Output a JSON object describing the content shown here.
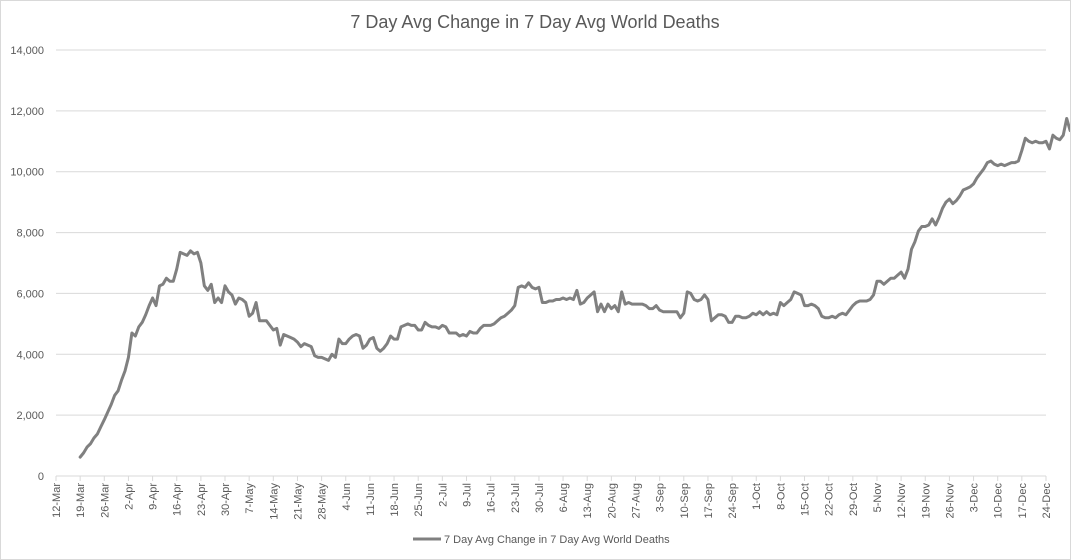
{
  "chart_data": {
    "type": "line",
    "title": "7 Day Avg Change in 7 Day Avg World Deaths",
    "xlabel": "",
    "ylabel": "",
    "ylim": [
      0,
      14000
    ],
    "yticks": [
      0,
      2000,
      4000,
      6000,
      8000,
      10000,
      12000,
      14000
    ],
    "ytick_labels": [
      "0",
      "2,000",
      "4,000",
      "6,000",
      "8,000",
      "10,000",
      "12,000",
      "14,000"
    ],
    "x_start": "2020-03-12",
    "x_end": "2020-12-24",
    "xtick_labels": [
      "12-Mar",
      "19-Mar",
      "26-Mar",
      "2-Apr",
      "9-Apr",
      "16-Apr",
      "23-Apr",
      "30-Apr",
      "7-May",
      "14-May",
      "21-May",
      "28-May",
      "4-Jun",
      "11-Jun",
      "18-Jun",
      "25-Jun",
      "2-Jul",
      "9-Jul",
      "16-Jul",
      "23-Jul",
      "30-Jul",
      "6-Aug",
      "13-Aug",
      "20-Aug",
      "27-Aug",
      "3-Sep",
      "10-Sep",
      "17-Sep",
      "24-Sep",
      "1-Oct",
      "8-Oct",
      "15-Oct",
      "22-Oct",
      "29-Oct",
      "5-Nov",
      "12-Nov",
      "19-Nov",
      "26-Nov",
      "3-Dec",
      "10-Dec",
      "17-Dec",
      "24-Dec"
    ],
    "grid": true,
    "legend_position": "bottom",
    "series": [
      {
        "name": "7 Day Avg Change in 7 Day Avg World Deaths",
        "color": "#808080",
        "x_start": "2020-03-19",
        "values": [
          620,
          760,
          950,
          1060,
          1250,
          1380,
          1620,
          1850,
          2100,
          2350,
          2650,
          2800,
          3150,
          3450,
          3900,
          4700,
          4600,
          4900,
          5050,
          5300,
          5600,
          5850,
          5600,
          6250,
          6300,
          6500,
          6400,
          6400,
          6800,
          7350,
          7300,
          7250,
          7400,
          7300,
          7350,
          7000,
          6250,
          6100,
          6300,
          5700,
          5850,
          5700,
          6250,
          6050,
          5950,
          5650,
          5850,
          5800,
          5700,
          5250,
          5350,
          5700,
          5100,
          5100,
          5100,
          4950,
          4800,
          4850,
          4300,
          4650,
          4600,
          4550,
          4500,
          4400,
          4250,
          4350,
          4300,
          4250,
          3950,
          3900,
          3900,
          3850,
          3800,
          4000,
          3900,
          4500,
          4350,
          4350,
          4500,
          4600,
          4650,
          4600,
          4200,
          4300,
          4500,
          4550,
          4200,
          4100,
          4200,
          4350,
          4600,
          4500,
          4500,
          4900,
          4950,
          5000,
          4950,
          4950,
          4800,
          4800,
          5050,
          4950,
          4900,
          4900,
          4850,
          4950,
          4900,
          4700,
          4700,
          4700,
          4600,
          4650,
          4600,
          4750,
          4700,
          4700,
          4850,
          4950,
          4950,
          4950,
          5000,
          5100,
          5200,
          5250,
          5350,
          5450,
          5600,
          6200,
          6250,
          6200,
          6350,
          6200,
          6150,
          6200,
          5700,
          5700,
          5750,
          5750,
          5800,
          5800,
          5850,
          5800,
          5850,
          5800,
          6100,
          5650,
          5700,
          5850,
          5950,
          6050,
          5400,
          5650,
          5400,
          5650,
          5500,
          5600,
          5400,
          6050,
          5650,
          5700,
          5650,
          5650,
          5650,
          5650,
          5600,
          5500,
          5500,
          5600,
          5450,
          5400,
          5400,
          5400,
          5400,
          5400,
          5200,
          5350,
          6050,
          6000,
          5800,
          5750,
          5800,
          5950,
          5800,
          5100,
          5200,
          5300,
          5300,
          5250,
          5050,
          5050,
          5250,
          5250,
          5200,
          5200,
          5250,
          5350,
          5300,
          5400,
          5300,
          5400,
          5300,
          5350,
          5300,
          5700,
          5600,
          5700,
          5800,
          6050,
          6000,
          5950,
          5600,
          5600,
          5650,
          5600,
          5500,
          5250,
          5200,
          5200,
          5250,
          5200,
          5300,
          5350,
          5300,
          5450,
          5600,
          5700,
          5750,
          5750,
          5750,
          5800,
          5950,
          6400,
          6400,
          6300,
          6400,
          6500,
          6500,
          6600,
          6700,
          6500,
          6800,
          7450,
          7700,
          8050,
          8200,
          8200,
          8250,
          8450,
          8250,
          8500,
          8800,
          9000,
          9100,
          8950,
          9050,
          9200,
          9400,
          9450,
          9500,
          9600,
          9800,
          9950,
          10100,
          10300,
          10350,
          10250,
          10200,
          10250,
          10200,
          10250,
          10300,
          10300,
          10350,
          10700,
          11100,
          11000,
          10950,
          11000,
          10950,
          10950,
          11000,
          10750,
          11200,
          11100,
          11050,
          11200,
          11750,
          11350
        ]
      }
    ]
  }
}
